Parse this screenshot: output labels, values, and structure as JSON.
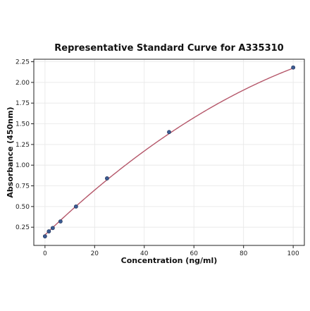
{
  "chart_data": {
    "type": "scatter",
    "title": "Representative Standard Curve for A335310",
    "xlabel": "Concentration (ng/ml)",
    "ylabel": "Absorbance (450nm)",
    "xlim": [
      -4.5,
      104.5
    ],
    "ylim": [
      0.03,
      2.28
    ],
    "xticks": [
      0,
      20,
      40,
      60,
      80,
      100
    ],
    "yticks": [
      0.25,
      0.5,
      0.75,
      1.0,
      1.25,
      1.5,
      1.75,
      2.0,
      2.25
    ],
    "grid": true,
    "series": [
      {
        "kind": "points",
        "x": [
          0,
          1.5625,
          3.125,
          6.25,
          12.5,
          25,
          50,
          100
        ],
        "y": [
          0.14,
          0.2,
          0.24,
          0.32,
          0.5,
          0.84,
          1.4,
          2.18
        ]
      },
      {
        "kind": "fit-curve",
        "model": "quadratic",
        "coefficients": [
          0.157,
          0.0288,
          -8.65e-05
        ]
      }
    ],
    "colors": {
      "point_fill": "#3b5b92",
      "point_edge": "#1f2f55",
      "curve": "#b5576a"
    }
  }
}
